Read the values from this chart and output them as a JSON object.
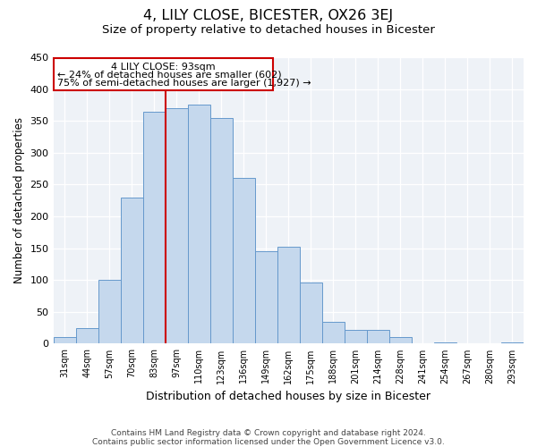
{
  "title": "4, LILY CLOSE, BICESTER, OX26 3EJ",
  "subtitle": "Size of property relative to detached houses in Bicester",
  "xlabel": "Distribution of detached houses by size in Bicester",
  "ylabel": "Number of detached properties",
  "bar_labels": [
    "31sqm",
    "44sqm",
    "57sqm",
    "70sqm",
    "83sqm",
    "97sqm",
    "110sqm",
    "123sqm",
    "136sqm",
    "149sqm",
    "162sqm",
    "175sqm",
    "188sqm",
    "201sqm",
    "214sqm",
    "228sqm",
    "241sqm",
    "254sqm",
    "267sqm",
    "280sqm",
    "293sqm"
  ],
  "bar_heights": [
    10,
    25,
    100,
    230,
    365,
    370,
    375,
    355,
    260,
    145,
    152,
    96,
    34,
    21,
    21,
    10,
    0,
    2,
    0,
    0,
    2
  ],
  "bar_color": "#c5d8ed",
  "bar_edge_color": "#6699cc",
  "ylim": [
    0,
    450
  ],
  "yticks": [
    0,
    50,
    100,
    150,
    200,
    250,
    300,
    350,
    400,
    450
  ],
  "marker_line_color": "#cc0000",
  "annotation_line1": "4 LILY CLOSE: 93sqm",
  "annotation_line2": "← 24% of detached houses are smaller (602)",
  "annotation_line3": "75% of semi-detached houses are larger (1,927) →",
  "footer_line1": "Contains HM Land Registry data © Crown copyright and database right 2024.",
  "footer_line2": "Contains public sector information licensed under the Open Government Licence v3.0.",
  "background_color": "#ffffff",
  "plot_bg_color": "#eef2f7"
}
